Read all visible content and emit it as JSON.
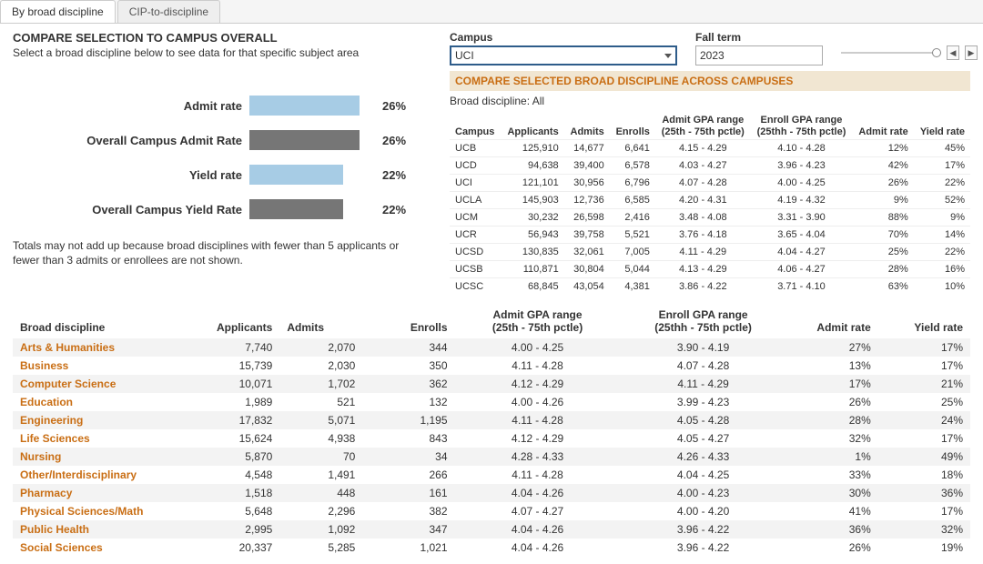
{
  "tabs": {
    "active": "By broad discipline",
    "inactive": "CIP-to-discipline"
  },
  "header": {
    "title": "COMPARE SELECTION TO CAMPUS OVERALL",
    "subtitle": "Select a broad discipline below to see data for that specific subject area"
  },
  "filters": {
    "campus_label": "Campus",
    "campus_value": "UCI",
    "term_label": "Fall term",
    "term_value": "2023"
  },
  "compare_header": "COMPARE SELECTED BROAD DISCIPLINE ACROSS CAMPUSES",
  "broad_disc_label": "Broad discipline: All",
  "bars": {
    "max_pct": 30,
    "rows": [
      {
        "label": "Admit rate",
        "value": "26%",
        "pct": 26,
        "color": "blue"
      },
      {
        "label": "Overall Campus Admit Rate",
        "value": "26%",
        "pct": 26,
        "color": "gray"
      },
      {
        "label": "Yield rate",
        "value": "22%",
        "pct": 22,
        "color": "blue"
      },
      {
        "label": "Overall Campus Yield Rate",
        "value": "22%",
        "pct": 22,
        "color": "gray"
      }
    ]
  },
  "note": "Totals may not add up because broad disciplines with fewer than 5 applicants or fewer than 3 admits or enrollees are not shown.",
  "campus_table": {
    "headers": {
      "campus": "Campus",
      "applicants": "Applicants",
      "admits": "Admits",
      "enrolls": "Enrolls",
      "admit_gpa": "Admit GPA range\n(25th - 75th pctle)",
      "enroll_gpa": "Enroll GPA range\n(25thh - 75th pctle)",
      "admit_rate": "Admit rate",
      "yield_rate": "Yield rate"
    },
    "rows": [
      {
        "campus": "UCB",
        "applicants": "125,910",
        "admits": "14,677",
        "enrolls": "6,641",
        "admit_gpa": "4.15 - 4.29",
        "enroll_gpa": "4.10 - 4.28",
        "admit_rate": "12%",
        "yield_rate": "45%"
      },
      {
        "campus": "UCD",
        "applicants": "94,638",
        "admits": "39,400",
        "enrolls": "6,578",
        "admit_gpa": "4.03 - 4.27",
        "enroll_gpa": "3.96 - 4.23",
        "admit_rate": "42%",
        "yield_rate": "17%"
      },
      {
        "campus": "UCI",
        "applicants": "121,101",
        "admits": "30,956",
        "enrolls": "6,796",
        "admit_gpa": "4.07 - 4.28",
        "enroll_gpa": "4.00 - 4.25",
        "admit_rate": "26%",
        "yield_rate": "22%"
      },
      {
        "campus": "UCLA",
        "applicants": "145,903",
        "admits": "12,736",
        "enrolls": "6,585",
        "admit_gpa": "4.20 - 4.31",
        "enroll_gpa": "4.19 - 4.32",
        "admit_rate": "9%",
        "yield_rate": "52%"
      },
      {
        "campus": "UCM",
        "applicants": "30,232",
        "admits": "26,598",
        "enrolls": "2,416",
        "admit_gpa": "3.48 - 4.08",
        "enroll_gpa": "3.31 - 3.90",
        "admit_rate": "88%",
        "yield_rate": "9%"
      },
      {
        "campus": "UCR",
        "applicants": "56,943",
        "admits": "39,758",
        "enrolls": "5,521",
        "admit_gpa": "3.76 - 4.18",
        "enroll_gpa": "3.65 - 4.04",
        "admit_rate": "70%",
        "yield_rate": "14%"
      },
      {
        "campus": "UCSD",
        "applicants": "130,835",
        "admits": "32,061",
        "enrolls": "7,005",
        "admit_gpa": "4.11 - 4.29",
        "enroll_gpa": "4.04 - 4.27",
        "admit_rate": "25%",
        "yield_rate": "22%"
      },
      {
        "campus": "UCSB",
        "applicants": "110,871",
        "admits": "30,804",
        "enrolls": "5,044",
        "admit_gpa": "4.13 - 4.29",
        "enroll_gpa": "4.06 - 4.27",
        "admit_rate": "28%",
        "yield_rate": "16%"
      },
      {
        "campus": "UCSC",
        "applicants": "68,845",
        "admits": "43,054",
        "enrolls": "4,381",
        "admit_gpa": "3.86 - 4.22",
        "enroll_gpa": "3.71 - 4.10",
        "admit_rate": "63%",
        "yield_rate": "10%"
      }
    ]
  },
  "disc_table": {
    "headers": {
      "name": "Broad discipline",
      "applicants": "Applicants",
      "admits": "Admits",
      "enrolls": "Enrolls",
      "admit_gpa": "Admit GPA range\n(25th - 75th pctle)",
      "enroll_gpa": "Enroll GPA range\n(25thh - 75th pctle)",
      "admit_rate": "Admit rate",
      "yield_rate": "Yield rate"
    },
    "rows": [
      {
        "name": "Arts & Humanities",
        "applicants": "7,740",
        "admits": "2,070",
        "enrolls": "344",
        "admit_gpa": "4.00 - 4.25",
        "enroll_gpa": "3.90 - 4.19",
        "admit_rate": "27%",
        "yield_rate": "17%"
      },
      {
        "name": "Business",
        "applicants": "15,739",
        "admits": "2,030",
        "enrolls": "350",
        "admit_gpa": "4.11 - 4.28",
        "enroll_gpa": "4.07 - 4.28",
        "admit_rate": "13%",
        "yield_rate": "17%"
      },
      {
        "name": "Computer Science",
        "applicants": "10,071",
        "admits": "1,702",
        "enrolls": "362",
        "admit_gpa": "4.12 - 4.29",
        "enroll_gpa": "4.11 - 4.29",
        "admit_rate": "17%",
        "yield_rate": "21%"
      },
      {
        "name": "Education",
        "applicants": "1,989",
        "admits": "521",
        "enrolls": "132",
        "admit_gpa": "4.00 - 4.26",
        "enroll_gpa": "3.99 - 4.23",
        "admit_rate": "26%",
        "yield_rate": "25%"
      },
      {
        "name": "Engineering",
        "applicants": "17,832",
        "admits": "5,071",
        "enrolls": "1,195",
        "admit_gpa": "4.11 - 4.28",
        "enroll_gpa": "4.05 - 4.28",
        "admit_rate": "28%",
        "yield_rate": "24%"
      },
      {
        "name": "Life Sciences",
        "applicants": "15,624",
        "admits": "4,938",
        "enrolls": "843",
        "admit_gpa": "4.12 - 4.29",
        "enroll_gpa": "4.05 - 4.27",
        "admit_rate": "32%",
        "yield_rate": "17%"
      },
      {
        "name": "Nursing",
        "applicants": "5,870",
        "admits": "70",
        "enrolls": "34",
        "admit_gpa": "4.28 - 4.33",
        "enroll_gpa": "4.26 - 4.33",
        "admit_rate": "1%",
        "yield_rate": "49%"
      },
      {
        "name": "Other/Interdisciplinary",
        "applicants": "4,548",
        "admits": "1,491",
        "enrolls": "266",
        "admit_gpa": "4.11 - 4.28",
        "enroll_gpa": "4.04 - 4.25",
        "admit_rate": "33%",
        "yield_rate": "18%"
      },
      {
        "name": "Pharmacy",
        "applicants": "1,518",
        "admits": "448",
        "enrolls": "161",
        "admit_gpa": "4.04 - 4.26",
        "enroll_gpa": "4.00 - 4.23",
        "admit_rate": "30%",
        "yield_rate": "36%"
      },
      {
        "name": "Physical Sciences/Math",
        "applicants": "5,648",
        "admits": "2,296",
        "enrolls": "382",
        "admit_gpa": "4.07 - 4.27",
        "enroll_gpa": "4.00 - 4.20",
        "admit_rate": "41%",
        "yield_rate": "17%"
      },
      {
        "name": "Public Health",
        "applicants": "2,995",
        "admits": "1,092",
        "enrolls": "347",
        "admit_gpa": "4.04 - 4.26",
        "enroll_gpa": "3.96 - 4.22",
        "admit_rate": "36%",
        "yield_rate": "32%"
      },
      {
        "name": "Social Sciences",
        "applicants": "20,337",
        "admits": "5,285",
        "enrolls": "1,021",
        "admit_gpa": "4.04 - 4.26",
        "enroll_gpa": "3.96 - 4.22",
        "admit_rate": "26%",
        "yield_rate": "19%"
      }
    ]
  },
  "colors": {
    "accent_orange": "#c96e14",
    "bar_blue": "#a7cce5",
    "bar_gray": "#767676",
    "orange_bg": "#f1e6d2",
    "row_alt": "#f3f3f3",
    "select_border": "#2e5c8a"
  }
}
